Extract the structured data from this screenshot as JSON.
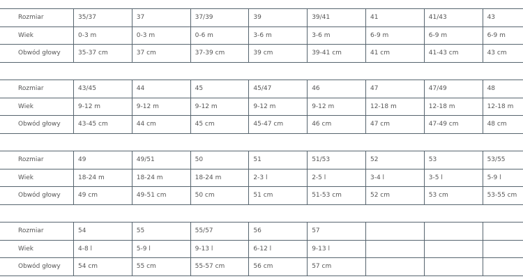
{
  "blocks": [
    {
      "rows": [
        {
          "label": "Rozmiar",
          "cells": [
            "35/37",
            "37",
            "37/39",
            "39",
            "39/41",
            "41",
            "41/43",
            "43"
          ]
        },
        {
          "label": "Wiek",
          "cells": [
            "0-3 m",
            "0-3 m",
            "0-6 m",
            "3-6 m",
            "3-6 m",
            "6-9 m",
            "6-9 m",
            "6-9 m"
          ]
        },
        {
          "label": "Obwód głowy",
          "cells": [
            "35-37 cm",
            "37 cm",
            "37-39 cm",
            "39 cm",
            "39-41 cm",
            "41 cm",
            "41-43 cm",
            "43 cm"
          ]
        }
      ]
    },
    {
      "rows": [
        {
          "label": "Rozmiar",
          "cells": [
            "43/45",
            "44",
            "45",
            "45/47",
            "46",
            "47",
            "47/49",
            "48"
          ]
        },
        {
          "label": "Wiek",
          "cells": [
            "9-12 m",
            "9-12 m",
            "9-12 m",
            "9-12 m",
            "9-12 m",
            "12-18 m",
            "12-18 m",
            "12-18 m"
          ]
        },
        {
          "label": "Obwód głowy",
          "cells": [
            "43-45 cm",
            "44 cm",
            "45 cm",
            "45-47 cm",
            "46 cm",
            "47 cm",
            "47-49 cm",
            "48 cm"
          ]
        }
      ]
    },
    {
      "rows": [
        {
          "label": "Rozmiar",
          "cells": [
            "49",
            "49/51",
            "50",
            "51",
            "51/53",
            "52",
            "53",
            "53/55"
          ]
        },
        {
          "label": "Wiek",
          "cells": [
            "18-24 m",
            "18-24 m",
            "18-24 m",
            "2-3 l",
            "2-5 l",
            "3-4 l",
            "3-5 l",
            "5-9 l"
          ]
        },
        {
          "label": "Obwód głowy",
          "cells": [
            "49 cm",
            "49-51 cm",
            "50 cm",
            "51 cm",
            "51-53 cm",
            "52 cm",
            "53 cm",
            "53-55 cm"
          ]
        }
      ]
    },
    {
      "rows": [
        {
          "label": "Rozmiar",
          "cells": [
            "54",
            "55",
            "55/57",
            "56",
            "57"
          ]
        },
        {
          "label": "Wiek",
          "cells": [
            "4-8 l",
            "5-9 l",
            "9-13 l",
            "6-12 l",
            "9-13 l"
          ]
        },
        {
          "label": "Obwód głowy",
          "cells": [
            "54 cm",
            "55 cm",
            "55-57 cm",
            "56 cm",
            "57 cm"
          ]
        }
      ]
    }
  ]
}
